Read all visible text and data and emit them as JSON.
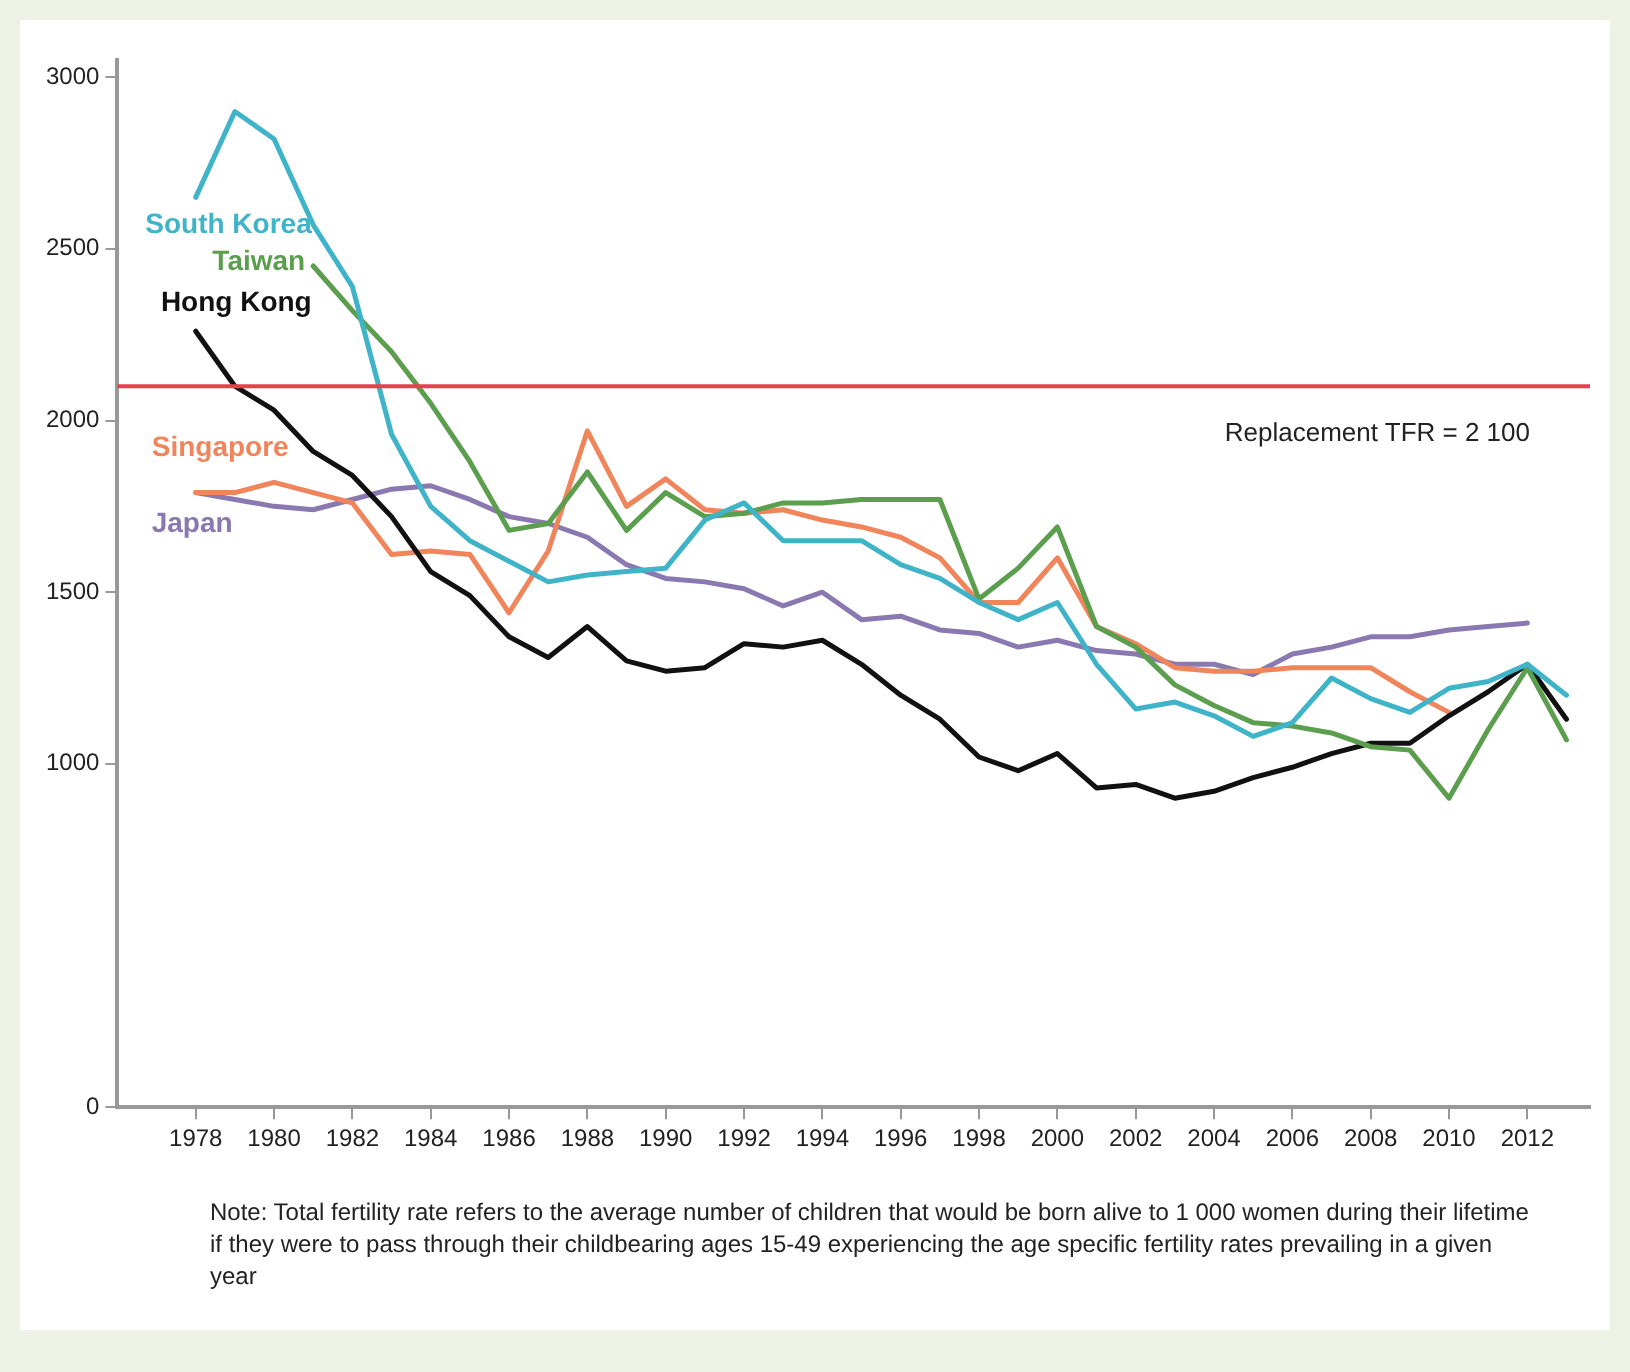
{
  "chart_data": {
    "type": "line",
    "x": [
      1978,
      1979,
      1980,
      1981,
      1982,
      1983,
      1984,
      1985,
      1986,
      1987,
      1988,
      1989,
      1990,
      1991,
      1992,
      1993,
      1994,
      1995,
      1996,
      1997,
      1998,
      1999,
      2000,
      2001,
      2002,
      2003,
      2004,
      2005,
      2006,
      2007,
      2008,
      2009,
      2010,
      2011,
      2012,
      2013
    ],
    "series": [
      {
        "name": "South Korea",
        "color": "#3fb4c8",
        "values": [
          2650,
          2900,
          2820,
          2570,
          2390,
          1960,
          1750,
          1650,
          1590,
          1530,
          1550,
          1560,
          1570,
          1710,
          1760,
          1650,
          1650,
          1650,
          1580,
          1540,
          1470,
          1420,
          1470,
          1290,
          1160,
          1180,
          1140,
          1080,
          1120,
          1250,
          1190,
          1150,
          1220,
          1240,
          1290,
          1200
        ]
      },
      {
        "name": "Taiwan",
        "color": "#5a9e4e",
        "values": [
          null,
          null,
          null,
          2450,
          2320,
          2200,
          2050,
          1880,
          1680,
          1700,
          1850,
          1680,
          1790,
          1720,
          1730,
          1760,
          1760,
          1770,
          1770,
          1770,
          1480,
          1570,
          1690,
          1400,
          1340,
          1230,
          1170,
          1120,
          1110,
          1090,
          1050,
          1040,
          900,
          1100,
          1280,
          1070
        ]
      },
      {
        "name": "Hong Kong",
        "color": "#111111",
        "values": [
          2260,
          2100,
          2030,
          1910,
          1840,
          1720,
          1560,
          1490,
          1370,
          1310,
          1400,
          1300,
          1270,
          1280,
          1350,
          1340,
          1360,
          1290,
          1200,
          1130,
          1020,
          980,
          1030,
          930,
          940,
          900,
          920,
          960,
          990,
          1030,
          1060,
          1060,
          1140,
          1210,
          1290,
          1130
        ]
      },
      {
        "name": "Singapore",
        "color": "#f0845a",
        "values": [
          1790,
          1790,
          1820,
          1790,
          1760,
          1610,
          1620,
          1610,
          1440,
          1620,
          1970,
          1750,
          1830,
          1740,
          1730,
          1740,
          1710,
          1690,
          1660,
          1600,
          1470,
          1470,
          1600,
          1400,
          1350,
          1280,
          1270,
          1270,
          1280,
          1280,
          1280,
          1210,
          1150,
          null,
          null,
          null
        ]
      },
      {
        "name": "Japan",
        "color": "#8a78b0",
        "values": [
          1790,
          1770,
          1750,
          1740,
          1770,
          1800,
          1810,
          1770,
          1720,
          1700,
          1660,
          1580,
          1540,
          1530,
          1510,
          1460,
          1500,
          1420,
          1430,
          1390,
          1380,
          1340,
          1360,
          1330,
          1320,
          1290,
          1290,
          1260,
          1320,
          1340,
          1370,
          1370,
          1390,
          1400,
          1410,
          null
        ]
      }
    ],
    "xlim": [
      1976,
      2013.6
    ],
    "xticks": [
      1978,
      1980,
      1982,
      1984,
      1986,
      1988,
      1990,
      1992,
      1994,
      1996,
      1998,
      2000,
      2002,
      2004,
      2006,
      2008,
      2010,
      2012
    ],
    "ylim": [
      0,
      3050
    ],
    "yticks": [
      0,
      1000,
      1500,
      2000,
      2500,
      3000
    ],
    "ref_lines": [
      {
        "axis": "y",
        "value": 2100,
        "label": "Replacement TFR = 2 100",
        "color": "#e8404f"
      }
    ],
    "annotations": [
      "Note: Total fertility rate refers to the average number of children that would be born alive to 1 000 women during their lifetime if they were to pass through their childbearing ages 15-49 experiencing the age specific fertility rates prevailing in a given year"
    ],
    "grid": false,
    "legend": false,
    "marker": "none",
    "line_style": "solid"
  }
}
